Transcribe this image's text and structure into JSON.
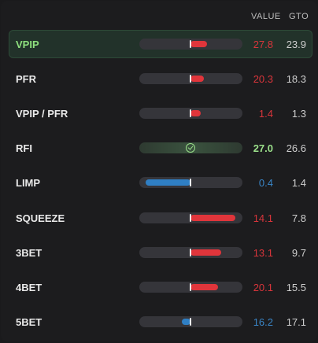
{
  "header": {
    "value_label": "VALUE",
    "gto_label": "GTO"
  },
  "colors": {
    "red": "#e0353b",
    "blue": "#2f7fc4",
    "green": "#9be08b",
    "highlight": "#22322a"
  },
  "rows": [
    {
      "label": "VPIP",
      "value": "27.8",
      "gto": "23.9",
      "status": "red",
      "deviation": 0.35,
      "highlight": true
    },
    {
      "label": "PFR",
      "value": "20.3",
      "gto": "18.3",
      "status": "red",
      "deviation": 0.28
    },
    {
      "label": "VPIP / PFR",
      "value": "1.4",
      "gto": "1.3",
      "status": "red",
      "deviation": 0.22
    },
    {
      "label": "RFI",
      "value": "27.0",
      "gto": "26.6",
      "status": "green",
      "deviation": 0.0,
      "icon": "check-circle-icon"
    },
    {
      "label": "LIMP",
      "value": "0.4",
      "gto": "1.4",
      "status": "blue",
      "deviation": -0.95
    },
    {
      "label": "SQUEEZE",
      "value": "14.1",
      "gto": "7.8",
      "status": "red",
      "deviation": 0.95
    },
    {
      "label": "3BET",
      "value": "13.1",
      "gto": "9.7",
      "status": "red",
      "deviation": 0.65
    },
    {
      "label": "4BET",
      "value": "20.1",
      "gto": "15.5",
      "status": "red",
      "deviation": 0.58
    },
    {
      "label": "5BET",
      "value": "16.2",
      "gto": "17.1",
      "status": "blue",
      "deviation": -0.18
    }
  ]
}
